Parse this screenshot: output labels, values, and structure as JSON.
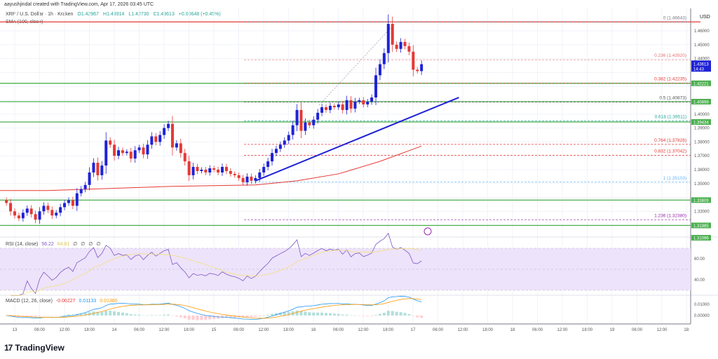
{
  "header": {
    "credit": "aayushjindal created with TradingView.com, Apr 17, 2026 03:45 UTC",
    "symbol": "XRP / U.S. Dollar · 1h · Kraken",
    "open": "O1.42967",
    "high": "H1.43914",
    "low": "L1.42730",
    "close": "C1.43613",
    "change": "+0.00648 (+0.45%)",
    "sma_label": "SMA (100, close)"
  },
  "price_axis": {
    "currency": "USD",
    "ticks": [
      "1.46000",
      "1.45000",
      "1.44000",
      "1.40000",
      "1.39000",
      "1.38000",
      "1.37000",
      "1.36000",
      "1.35000",
      "1.33000"
    ],
    "current_price": "1.43613",
    "countdown": "14:43",
    "level_badges": [
      "1.42221",
      "1.40898",
      "1.39434",
      "1.33809",
      "1.31985",
      "1.31096"
    ]
  },
  "fib_levels": [
    {
      "label": "0 (1.46643)",
      "price": 1.46643,
      "color": "#787b86"
    },
    {
      "label": "0.236 (1.43920)",
      "price": 1.4392,
      "color": "#e57373"
    },
    {
      "label": "0.382 (1.42235)",
      "price": 1.42235,
      "color": "#e53935"
    },
    {
      "label": "0.5 (1.40873)",
      "price": 1.40873,
      "color": "#555555"
    },
    {
      "label": "0.618 (1.39511)",
      "price": 1.39511,
      "color": "#26a69a"
    },
    {
      "label": "0.764 (1.37826)",
      "price": 1.37826,
      "color": "#e53935"
    },
    {
      "label": "0.832 (1.37042)",
      "price": 1.37042,
      "color": "#e53935"
    },
    {
      "label": "1 (1.35103)",
      "price": 1.35103,
      "color": "#64b5f6"
    },
    {
      "label": "1.236 (1.32380)",
      "price": 1.3238,
      "color": "#9c27b0"
    }
  ],
  "horizontal_levels": [
    1.42221,
    1.40898,
    1.39434,
    1.33809,
    1.31985
  ],
  "resistance_price": 1.46643,
  "colors": {
    "up": "#1e22d6",
    "down": "#e53935",
    "support": "#4caf50",
    "sma": "#e53935",
    "trendline": "#1e22d6",
    "rsi": "#7e57c2",
    "rsi_ma": "#f5e07a",
    "rsi_band": "#ede3fb",
    "macd": "#2196f3",
    "signal": "#ff9800"
  },
  "rsi": {
    "label": "RSI (14, close)",
    "value": "56.22",
    "ma": "64.81",
    "extra": [
      "∅",
      "∅",
      "∅",
      "∅"
    ],
    "ticks": [
      "60.00",
      "40.00"
    ]
  },
  "macd": {
    "label": "MACD (12, 26, close)",
    "hist": "-0.00227",
    "macd": "0.01133",
    "signal": "0.01360",
    "ticks": [
      "0.01000",
      "0.00000"
    ]
  },
  "time_axis": [
    "13",
    "06:00",
    "12:00",
    "18:00",
    "14",
    "06:00",
    "12:00",
    "18:00",
    "15",
    "06:00",
    "12:00",
    "18:00",
    "16",
    "06:00",
    "12:00",
    "18:00",
    "17",
    "06:00",
    "12:00",
    "18:00",
    "18",
    "06:00",
    "12:00",
    "18:00",
    "19",
    "06:00",
    "12:00",
    "18:"
  ],
  "brand": "TradingView",
  "chart_data": {
    "type": "candlestick",
    "interval": "1h",
    "closes": [
      1.336,
      1.33,
      1.327,
      1.325,
      1.329,
      1.332,
      1.328,
      1.324,
      1.33,
      1.334,
      1.331,
      1.327,
      1.329,
      1.333,
      1.336,
      1.338,
      1.334,
      1.343,
      1.346,
      1.349,
      1.358,
      1.365,
      1.356,
      1.363,
      1.381,
      1.378,
      1.37,
      1.374,
      1.372,
      1.373,
      1.368,
      1.374,
      1.376,
      1.371,
      1.378,
      1.384,
      1.38,
      1.385,
      1.39,
      1.393,
      1.376,
      1.379,
      1.372,
      1.366,
      1.356,
      1.362,
      1.359,
      1.36,
      1.358,
      1.361,
      1.36,
      1.358,
      1.362,
      1.359,
      1.357,
      1.356,
      1.354,
      1.351,
      1.355,
      1.352,
      1.354,
      1.358,
      1.362,
      1.366,
      1.372,
      1.375,
      1.378,
      1.381,
      1.385,
      1.392,
      1.403,
      1.388,
      1.394,
      1.392,
      1.396,
      1.401,
      1.405,
      1.403,
      1.406,
      1.405,
      1.407,
      1.403,
      1.41,
      1.404,
      1.409,
      1.41,
      1.407,
      1.409,
      1.412,
      1.428,
      1.436,
      1.444,
      1.465,
      1.45,
      1.447,
      1.452,
      1.449,
      1.445,
      1.432,
      1.431,
      1.436
    ],
    "sma100_every10": [
      1.345,
      1.345,
      1.346,
      1.347,
      1.348,
      1.3485,
      1.349,
      1.352,
      1.357,
      1.366,
      1.377
    ],
    "trendline": [
      {
        "price": 1.352,
        "candle": 60
      },
      {
        "price": 1.412,
        "candle": 109
      }
    ],
    "ylim": [
      1.309,
      1.472
    ]
  }
}
